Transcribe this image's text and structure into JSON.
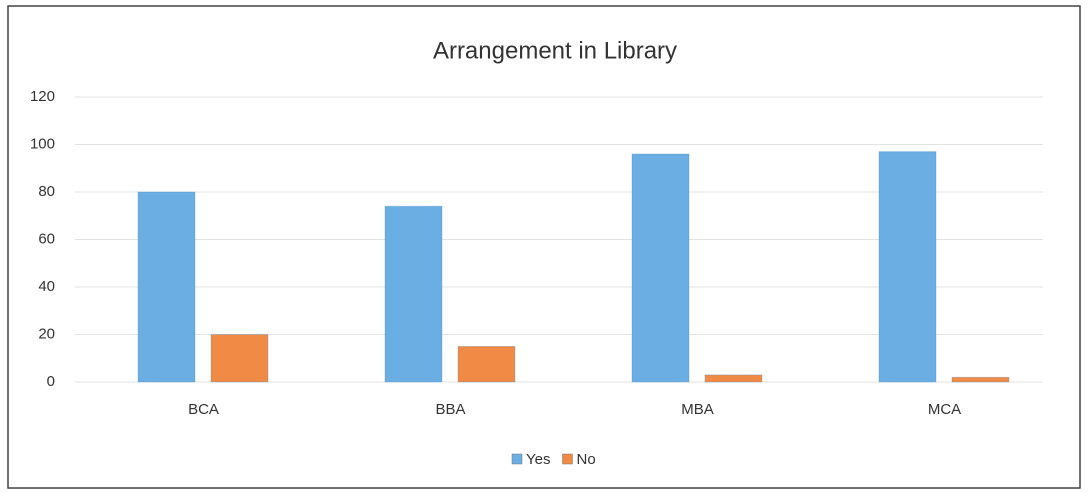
{
  "chart_data": {
    "type": "bar",
    "title": "Arrangement in Library",
    "categories": [
      "BCA",
      "BBA",
      "MBA",
      "MCA"
    ],
    "series": [
      {
        "name": "Yes",
        "color": "#6aaee3",
        "values": [
          80,
          74,
          96,
          97
        ]
      },
      {
        "name": "No",
        "color": "#f08a45",
        "values": [
          20,
          15,
          3,
          2
        ]
      }
    ],
    "ylim": [
      0,
      120
    ],
    "yticks": [
      0,
      20,
      40,
      60,
      80,
      100,
      120
    ],
    "grid": true,
    "legend": "bottom"
  }
}
